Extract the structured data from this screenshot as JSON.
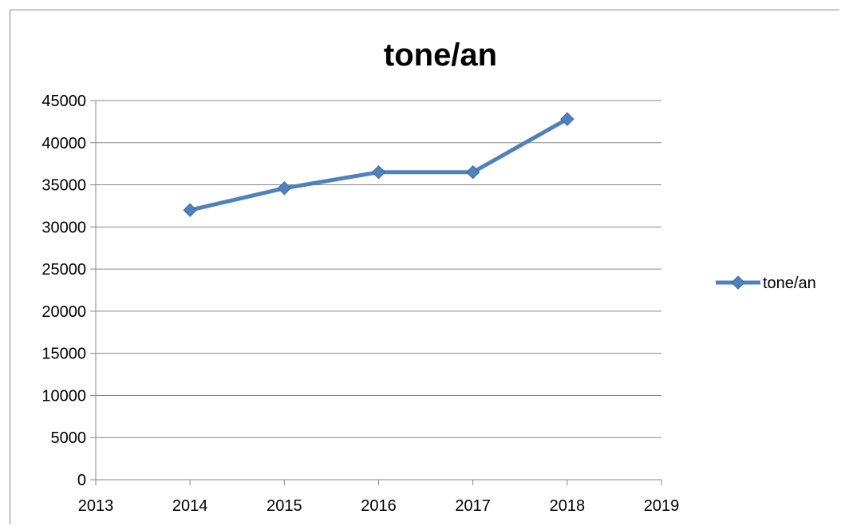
{
  "chart_data": {
    "type": "scatter",
    "title": "tone/an",
    "xlabel": "",
    "ylabel": "",
    "xlim": [
      2013,
      2019
    ],
    "ylim": [
      0,
      45000
    ],
    "x_ticks": [
      "2013",
      "2014",
      "2015",
      "2016",
      "2017",
      "2018",
      "2019"
    ],
    "y_ticks": [
      "0",
      "5000",
      "10000",
      "15000",
      "20000",
      "25000",
      "30000",
      "35000",
      "40000",
      "45000"
    ],
    "grid": "horizontal",
    "legend_position": "right",
    "series": [
      {
        "name": "tone/an",
        "color": "#4F81BD",
        "marker": "diamond",
        "x": [
          2014,
          2015,
          2016,
          2017,
          2018
        ],
        "y": [
          32000,
          34600,
          36500,
          36500,
          42800
        ]
      }
    ]
  }
}
